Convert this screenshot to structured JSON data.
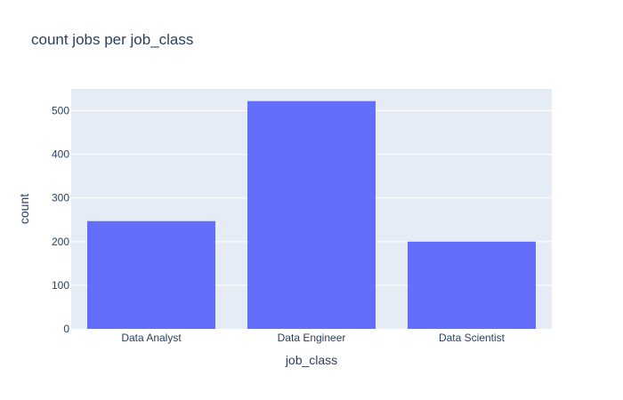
{
  "chart_data": {
    "type": "bar",
    "title": "count jobs per job_class",
    "xlabel": "job_class",
    "ylabel": "count",
    "categories": [
      "Data Analyst",
      "Data Engineer",
      "Data Scientist"
    ],
    "values": [
      247,
      522,
      200
    ],
    "ylim": [
      0,
      550
    ],
    "yticks": [
      0,
      100,
      200,
      300,
      400,
      500
    ],
    "grid": true,
    "colors": {
      "bar": "#636efa",
      "plot_background": "#e5ecf6",
      "grid": "#ffffff",
      "text": "#2a3f5f"
    }
  }
}
